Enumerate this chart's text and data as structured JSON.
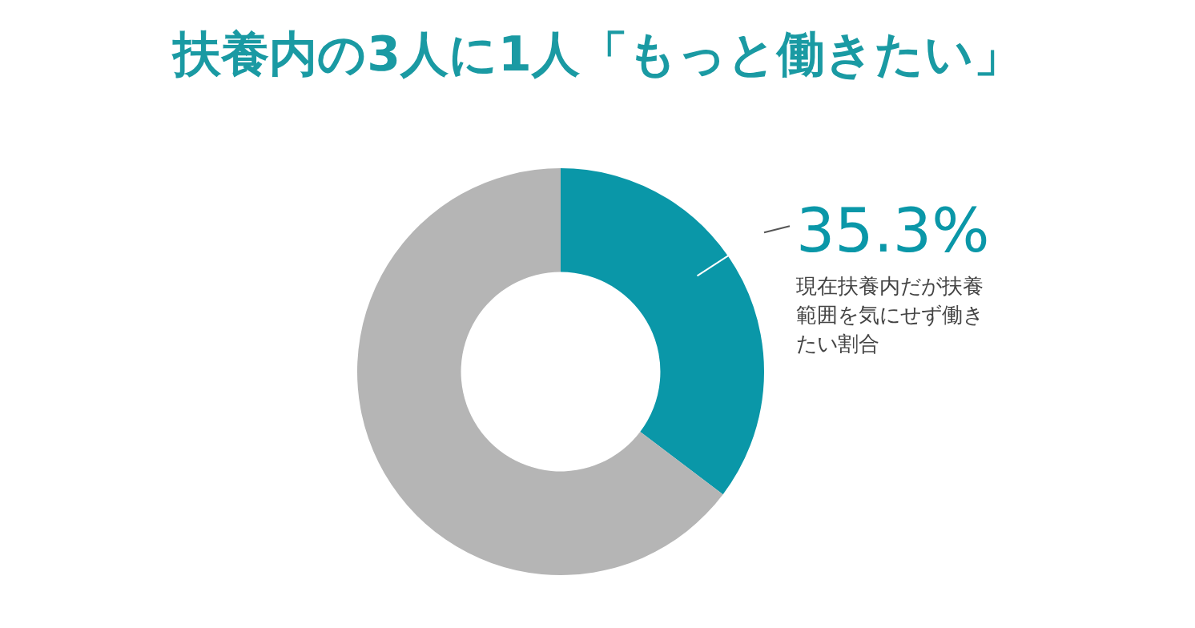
{
  "chart_data": {
    "type": "donut",
    "title": "扶養内の3人に1人「もっと働きたい」",
    "categories": [
      "現在扶養内だが扶養範囲を気にせず働きたい割合",
      null
    ],
    "values": [
      35.3,
      64.7
    ],
    "colors": [
      "#0a97a8",
      "#b5b5b5"
    ],
    "value_labels": [
      "35.3%",
      null
    ],
    "legend": false
  }
}
